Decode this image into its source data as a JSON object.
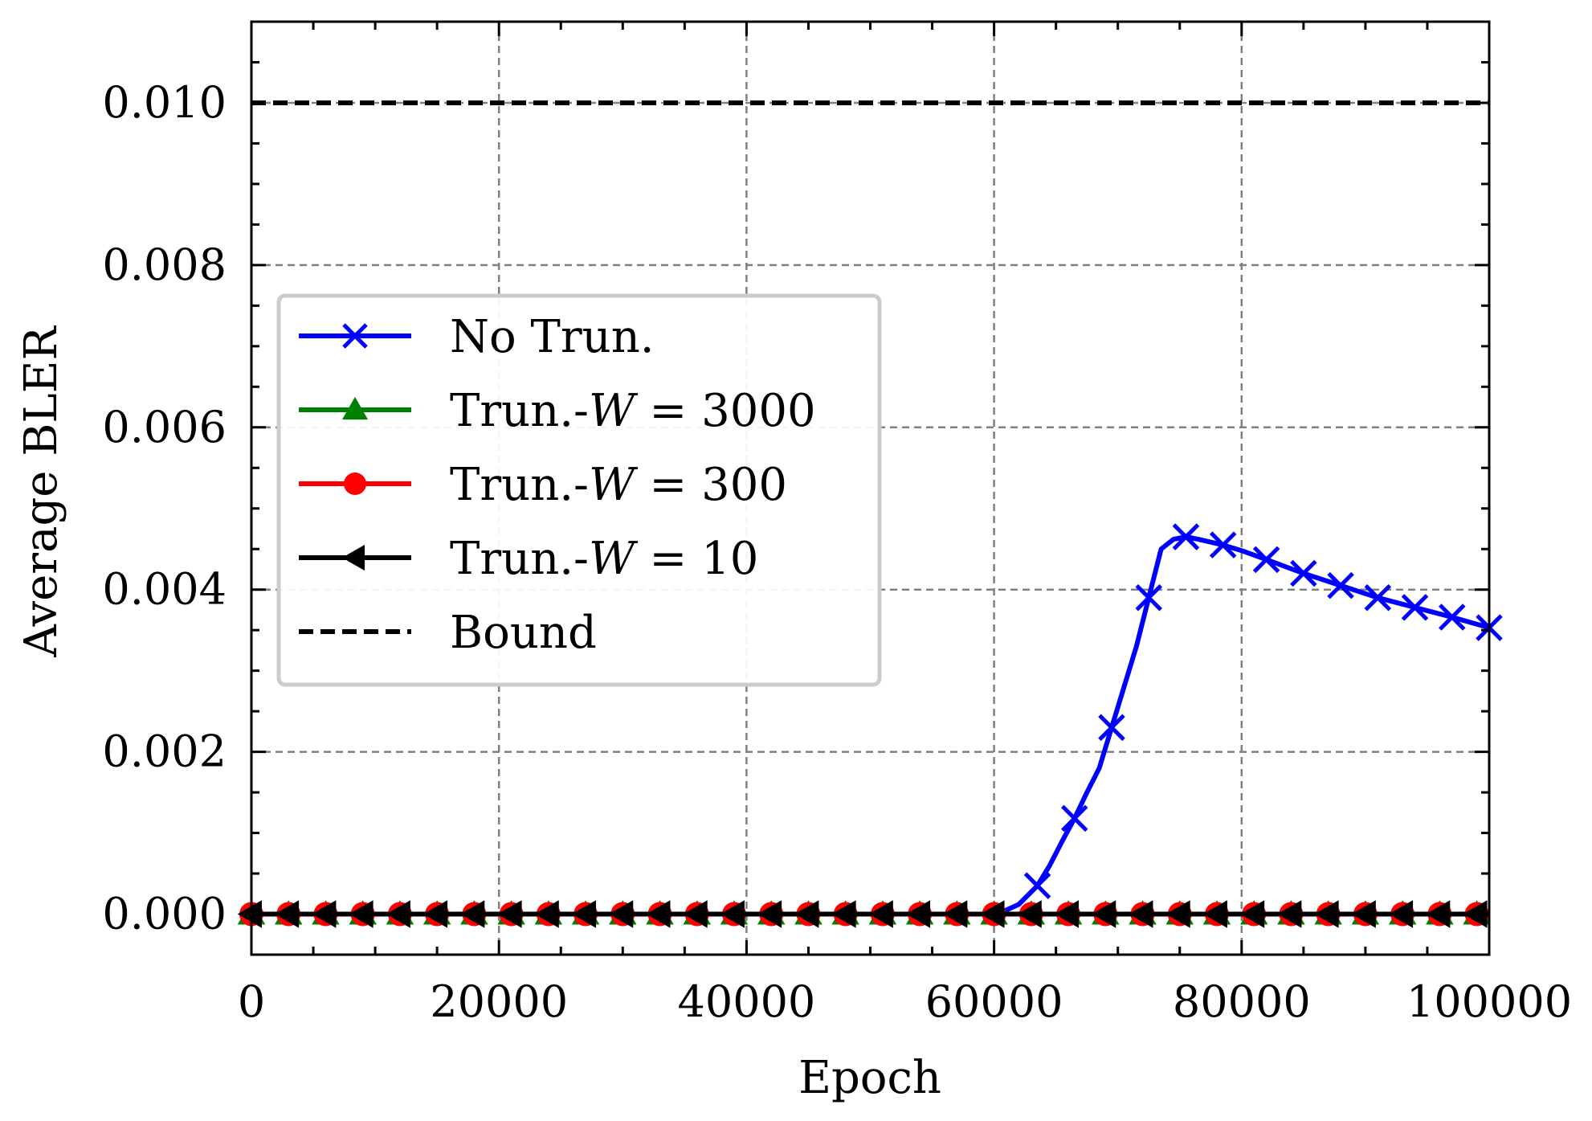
{
  "chart_data": {
    "type": "line",
    "xlabel": "Epoch",
    "ylabel": "Average BLER",
    "xlim": [
      0,
      100000
    ],
    "ylim": [
      -0.0005,
      0.011
    ],
    "xticks": [
      0,
      20000,
      40000,
      60000,
      80000,
      100000
    ],
    "xtick_labels": [
      "0",
      "20000",
      "40000",
      "60000",
      "80000",
      "100000"
    ],
    "yticks": [
      0.0,
      0.002,
      0.004,
      0.006,
      0.008,
      0.01
    ],
    "ytick_labels": [
      "0.000",
      "0.002",
      "0.004",
      "0.006",
      "0.008",
      "0.010"
    ],
    "grid": true,
    "legend_position": "center-left",
    "series": [
      {
        "name": "No Trun.",
        "legend_prefix": "No Trun.",
        "legend_math": "",
        "legend_suffix": "",
        "color": "#0000ff",
        "marker": "x",
        "x": [
          0,
          10000,
          20000,
          30000,
          40000,
          50000,
          55000,
          58000,
          60000,
          61000,
          62000,
          63500,
          64500,
          65500,
          66500,
          67500,
          68500,
          69500,
          70500,
          71500,
          72500,
          73500,
          74500,
          75500,
          76500,
          78500,
          80000,
          82000,
          85000,
          88000,
          91000,
          94000,
          97000,
          100000
        ],
        "y": [
          0,
          0,
          0,
          0,
          0,
          0,
          0,
          0,
          0,
          5e-05,
          0.00012,
          0.00035,
          0.0006,
          0.0009,
          0.00118,
          0.0015,
          0.0018,
          0.0023,
          0.0028,
          0.0033,
          0.0039,
          0.0045,
          0.00462,
          0.00465,
          0.00462,
          0.00455,
          0.00448,
          0.00437,
          0.0042,
          0.00405,
          0.0039,
          0.00378,
          0.00366,
          0.00353
        ],
        "marker_x": [
          63500,
          66500,
          69500,
          72500,
          75500,
          78500,
          82000,
          85000,
          88000,
          91000,
          94000,
          97000,
          100000
        ],
        "marker_y": [
          0.00035,
          0.00118,
          0.0023,
          0.0039,
          0.00465,
          0.00455,
          0.00437,
          0.0042,
          0.00405,
          0.0039,
          0.00378,
          0.00366,
          0.00353
        ]
      },
      {
        "name": "Trun.-W = 3000",
        "legend_prefix": "Trun.-",
        "legend_math": "W",
        "legend_suffix": " = 3000",
        "color": "#008000",
        "marker": "triangle-up",
        "x": [
          0,
          100000
        ],
        "y": [
          0,
          0
        ],
        "marker_x": [
          0,
          3000,
          6000,
          9000,
          12000,
          15000,
          18000,
          21000,
          24000,
          27000,
          30000,
          33000,
          36000,
          39000,
          42000,
          45000,
          48000,
          51000,
          54000,
          57000,
          60000,
          63000,
          66000,
          69000,
          72000,
          75000,
          78000,
          81000,
          84000,
          87000,
          90000,
          93000,
          96000,
          99000
        ],
        "marker_y": [
          0,
          0,
          0,
          0,
          0,
          0,
          0,
          0,
          0,
          0,
          0,
          0,
          0,
          0,
          0,
          0,
          0,
          0,
          0,
          0,
          0,
          0,
          0,
          0,
          0,
          0,
          0,
          0,
          0,
          0,
          0,
          0,
          0,
          0
        ]
      },
      {
        "name": "Trun.-W = 300",
        "legend_prefix": "Trun.-",
        "legend_math": "W",
        "legend_suffix": " = 300",
        "color": "#ff0000",
        "marker": "circle",
        "x": [
          0,
          100000
        ],
        "y": [
          0,
          0
        ],
        "marker_x": [
          0,
          3000,
          6000,
          9000,
          12000,
          15000,
          18000,
          21000,
          24000,
          27000,
          30000,
          33000,
          36000,
          39000,
          42000,
          45000,
          48000,
          51000,
          54000,
          57000,
          60000,
          63000,
          66000,
          69000,
          72000,
          75000,
          78000,
          81000,
          84000,
          87000,
          90000,
          93000,
          96000,
          99000
        ],
        "marker_y": [
          0,
          0,
          0,
          0,
          0,
          0,
          0,
          0,
          0,
          0,
          0,
          0,
          0,
          0,
          0,
          0,
          0,
          0,
          0,
          0,
          0,
          0,
          0,
          0,
          0,
          0,
          0,
          0,
          0,
          0,
          0,
          0,
          0,
          0
        ]
      },
      {
        "name": "Trun.-W = 10",
        "legend_prefix": "Trun.-",
        "legend_math": "W",
        "legend_suffix": " = 10",
        "color": "#000000",
        "marker": "triangle-left",
        "x": [
          0,
          100000
        ],
        "y": [
          0,
          0
        ],
        "marker_x": [
          0,
          3000,
          6000,
          9000,
          12000,
          15000,
          18000,
          21000,
          24000,
          27000,
          30000,
          33000,
          36000,
          39000,
          42000,
          45000,
          48000,
          51000,
          54000,
          57000,
          60000,
          63000,
          66000,
          69000,
          72000,
          75000,
          78000,
          81000,
          84000,
          87000,
          90000,
          93000,
          96000,
          99000
        ],
        "marker_y": [
          0,
          0,
          0,
          0,
          0,
          0,
          0,
          0,
          0,
          0,
          0,
          0,
          0,
          0,
          0,
          0,
          0,
          0,
          0,
          0,
          0,
          0,
          0,
          0,
          0,
          0,
          0,
          0,
          0,
          0,
          0,
          0,
          0,
          0
        ]
      },
      {
        "name": "Bound",
        "legend_prefix": "Bound",
        "legend_math": "",
        "legend_suffix": "",
        "color": "#000000",
        "marker": "none",
        "linestyle": "dashed",
        "x": [
          0,
          100000
        ],
        "y": [
          0.01,
          0.01
        ]
      }
    ]
  }
}
